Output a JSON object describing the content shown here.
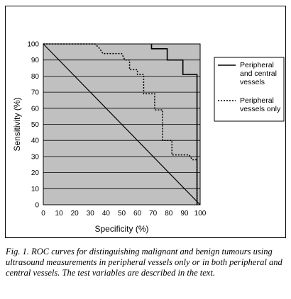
{
  "chart_data": {
    "type": "line",
    "xlabel": "Specificity (%)",
    "ylabel": "Sensitivity (%)",
    "xlim": [
      0,
      100
    ],
    "ylim": [
      0,
      100
    ],
    "x_ticks": [
      "0",
      "10",
      "20",
      "30",
      "40",
      "50",
      "60",
      "70",
      "80",
      "90",
      "100"
    ],
    "y_ticks": [
      "0",
      "10",
      "20",
      "30",
      "40",
      "50",
      "60",
      "70",
      "80",
      "90",
      "100"
    ],
    "grid": "horizontal",
    "plot_background": "#c0c0c0",
    "legend_position": "right",
    "series": [
      {
        "name": "Peripheral and central vessels",
        "name_lines": [
          "Peripheral",
          "and central",
          "vessels"
        ],
        "style": "solid",
        "points": [
          [
            69,
            100
          ],
          [
            69,
            97
          ],
          [
            79,
            97
          ],
          [
            79,
            90
          ],
          [
            89,
            90
          ],
          [
            89,
            81
          ],
          [
            98,
            81
          ],
          [
            98,
            0
          ]
        ]
      },
      {
        "name": "Peripheral vessels only",
        "name_lines": [
          "Peripheral",
          "vessels only"
        ],
        "style": "dotted",
        "points": [
          [
            0,
            100
          ],
          [
            33,
            100
          ],
          [
            36,
            97
          ],
          [
            38,
            94
          ],
          [
            50,
            94
          ],
          [
            52,
            90
          ],
          [
            55,
            90
          ],
          [
            55,
            84
          ],
          [
            60,
            84
          ],
          [
            60,
            81
          ],
          [
            64,
            81
          ],
          [
            64,
            69
          ],
          [
            71,
            69
          ],
          [
            71,
            59
          ],
          [
            76,
            59
          ],
          [
            76,
            40
          ],
          [
            82,
            40
          ],
          [
            82,
            31
          ],
          [
            93,
            31
          ],
          [
            95,
            28
          ],
          [
            98,
            28
          ],
          [
            98,
            0
          ]
        ]
      },
      {
        "name": "",
        "style": "diagonal",
        "points": [
          [
            0,
            100
          ],
          [
            100,
            0
          ]
        ]
      }
    ]
  },
  "caption": "Fig. 1. ROC curves for distinguishing malignant and benign tumours using ultrasound measurements in peripheral vessels only or in both peripheral and central vessels. The test variables are described in the text."
}
